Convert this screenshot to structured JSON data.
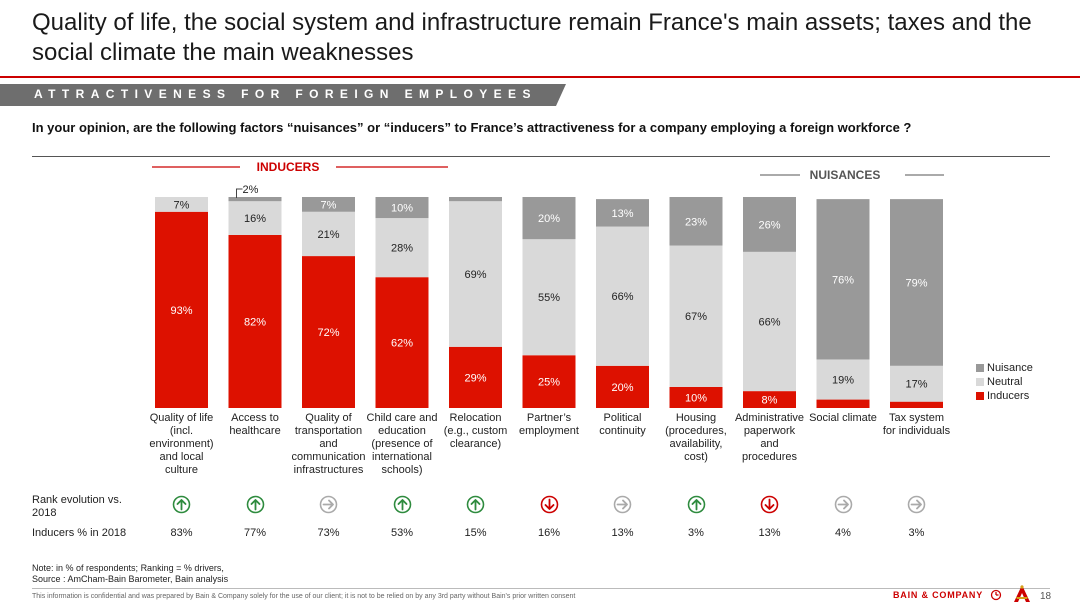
{
  "page": {
    "title": "Quality of life, the social system and infrastructure remain France's main assets; taxes and the social climate the main weaknesses",
    "section": "ATTRACTIVENESS FOR FOREIGN EMPLOYEES",
    "question": "In your opinion, are the following factors “nuisances” or “inducers” to France’s attractiveness for a company employing a foreign workforce ?",
    "inducers_header": "INDUCERS",
    "nuisances_header": "NUISANCES",
    "rank_label": "Rank evolution vs. 2018",
    "inducers2018_label": "Inducers % in 2018",
    "note_line1": "Note: in % of respondents; Ranking = % drivers,",
    "note_line2": "Source : AmCham-Bain Barometer, Bain analysis",
    "disclaimer": "This information is confidential and was prepared by Bain & Company solely for the use of our client; it is not to be relied on by any 3rd party without Bain's prior written consent",
    "brand": "BAIN & COMPANY",
    "page_number": "18",
    "colors": {
      "inducers": "#dd1100",
      "neutral": "#d9d9d9",
      "nuisance": "#999999",
      "accent": "#cc0000",
      "arrow_up": "#2e8b3e",
      "arrow_down": "#cc0000",
      "arrow_flat": "#aaaaaa"
    }
  },
  "chart_data": {
    "type": "bar",
    "stacked": true,
    "percent": true,
    "ylim": [
      0,
      100
    ],
    "categories": [
      "Quality of life (incl. environment) and local culture",
      "Access to healthcare",
      "Quality of transportation and communication infrastructures",
      "Child care and education (presence of international schools)",
      "Relocation (e.g., custom clearance)",
      "Partner’s employment",
      "Political continuity",
      "Housing (procedures, availability, cost)",
      "Administrative paperwork and procedures",
      "Social climate",
      "Tax system for individuals"
    ],
    "category_lines": [
      [
        "Quality of life",
        "(incl.",
        "environment)",
        "and local",
        "culture"
      ],
      [
        "Access to",
        "healthcare"
      ],
      [
        "Quality of",
        "transportation",
        "and",
        "communication",
        "infrastructures"
      ],
      [
        "Child care and",
        "education",
        "(presence of",
        "international",
        "schools)"
      ],
      [
        "Relocation",
        "(e.g., custom",
        "clearance)"
      ],
      [
        "Partner’s",
        "employment"
      ],
      [
        "Political",
        "continuity"
      ],
      [
        "Housing",
        "(procedures,",
        "availability,",
        "cost)"
      ],
      [
        "Administrative",
        "paperwork",
        "and",
        "procedures"
      ],
      [
        "Social climate"
      ],
      [
        "Tax system",
        "for individuals"
      ]
    ],
    "series": [
      {
        "name": "Inducers",
        "values": [
          93,
          82,
          72,
          62,
          29,
          25,
          20,
          10,
          8,
          4,
          3
        ],
        "labels": [
          "93%",
          "82%",
          "72%",
          "62%",
          "29%",
          "25%",
          "20%",
          "10%",
          "8%",
          "",
          ""
        ]
      },
      {
        "name": "Neutral",
        "values": [
          7,
          16,
          21,
          28,
          69,
          55,
          66,
          67,
          66,
          19,
          17
        ],
        "labels": [
          "7%",
          "16%",
          "21%",
          "28%",
          "69%",
          "55%",
          "66%",
          "67%",
          "66%",
          "19%",
          "17%"
        ]
      },
      {
        "name": "Nuisance",
        "values": [
          0,
          2,
          7,
          10,
          2,
          20,
          13,
          23,
          26,
          76,
          79
        ],
        "labels": [
          "",
          "",
          "7%",
          "10%",
          "",
          "20%",
          "13%",
          "23%",
          "26%",
          "76%",
          "79%"
        ]
      }
    ],
    "annotation": "2%",
    "legend": [
      "Nuisance",
      "Neutral",
      "Inducers"
    ],
    "legend_position": "right",
    "rank_evolution": [
      "up",
      "up",
      "flat",
      "up",
      "up",
      "down",
      "flat",
      "up",
      "down",
      "flat",
      "flat"
    ],
    "inducers_2018": [
      "83%",
      "77%",
      "73%",
      "53%",
      "15%",
      "16%",
      "13%",
      "3%",
      "13%",
      "4%",
      "3%"
    ]
  }
}
